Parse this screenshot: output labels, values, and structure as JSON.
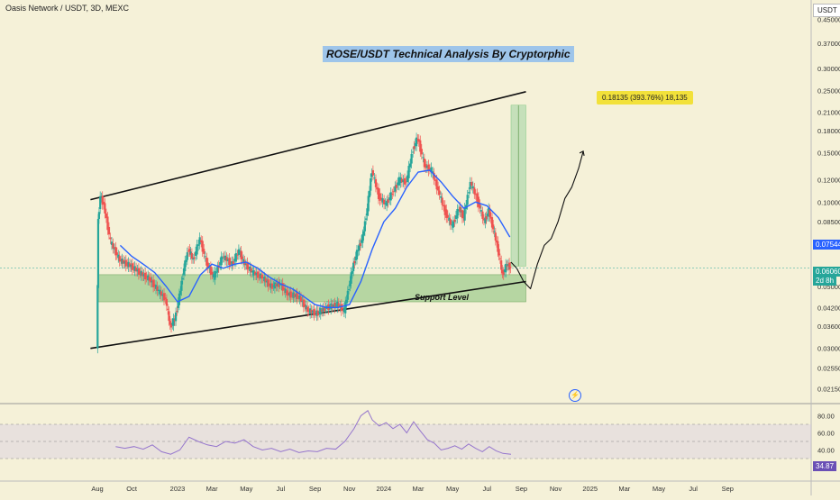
{
  "header": {
    "symbol_line": "Oasis Network / USDT, 3D, MEXC",
    "currency": "USDT"
  },
  "title": "ROSE/USDT Technical Analysis By Cryptorphic",
  "annotations": {
    "target_label": "0.18135 (393.76%) 18,135",
    "support_label": "Support Level",
    "price_tag_ma": "0.07544",
    "price_tag_last": "0.06060",
    "price_tag_countdown": "2d 8h",
    "rsi_tag": "34.87"
  },
  "colors": {
    "background": "#f5f1d8",
    "up_candle": "#26a69a",
    "down_candle": "#ef5350",
    "ma_line": "#2962ff",
    "support_zone": "#8cc57e",
    "target_zone": "#a5d6a7",
    "rsi_line": "#9575cd"
  },
  "chart_data": [
    {
      "type": "candlestick",
      "title": "ROSE/USDT Technical Analysis By Cryptorphic",
      "y_scale": "log",
      "ylim": [
        0.0205,
        0.49
      ],
      "y_ticks": [
        0.45,
        0.37,
        0.3,
        0.25,
        0.21,
        0.18,
        0.15,
        0.12,
        0.1,
        0.085,
        0.07,
        0.05,
        0.042,
        0.036,
        0.03,
        0.0255,
        0.0215
      ],
      "y_tick_labels": [
        "0.45000",
        "0.37000",
        "0.30000",
        "0.25000",
        "0.21000",
        "0.18000",
        "0.15000",
        "0.12000",
        "0.10000",
        "0.08500",
        "0.07000",
        "0.05000",
        "0.04200",
        "0.03600",
        "0.03000",
        "0.02550",
        "0.02150"
      ],
      "x_labels": [
        "Aug",
        "Oct",
        "2023",
        "Mar",
        "May",
        "Jul",
        "Sep",
        "Nov",
        "2024",
        "Mar",
        "May",
        "Jul",
        "Sep",
        "Nov",
        "2025",
        "Mar",
        "May",
        "Jul",
        "Sep"
      ],
      "x_label_pos": [
        0,
        1.5,
        3.5,
        5,
        6.5,
        8,
        9.5,
        11,
        12.5,
        14,
        15.5,
        17,
        18.5,
        20,
        21.5,
        23,
        24.5,
        26,
        27.5
      ],
      "xlim": [
        -0.3,
        28.3
      ],
      "series_points": [
        [
          0,
          0.03
        ],
        [
          0.05,
          0.085
        ],
        [
          0.15,
          0.105
        ],
        [
          0.3,
          0.098
        ],
        [
          0.6,
          0.072
        ],
        [
          1.0,
          0.062
        ],
        [
          1.5,
          0.059
        ],
        [
          2.0,
          0.055
        ],
        [
          2.3,
          0.053
        ],
        [
          2.7,
          0.048
        ],
        [
          3.0,
          0.045
        ],
        [
          3.2,
          0.036
        ],
        [
          3.4,
          0.038
        ],
        [
          3.6,
          0.046
        ],
        [
          3.8,
          0.058
        ],
        [
          4.0,
          0.068
        ],
        [
          4.2,
          0.062
        ],
        [
          4.5,
          0.074
        ],
        [
          4.8,
          0.06
        ],
        [
          5.1,
          0.054
        ],
        [
          5.5,
          0.064
        ],
        [
          5.9,
          0.06
        ],
        [
          6.2,
          0.067
        ],
        [
          6.4,
          0.061
        ],
        [
          6.8,
          0.056
        ],
        [
          7.2,
          0.054
        ],
        [
          7.6,
          0.05
        ],
        [
          8.0,
          0.051
        ],
        [
          8.3,
          0.047
        ],
        [
          8.8,
          0.046
        ],
        [
          9.2,
          0.041
        ],
        [
          9.6,
          0.04
        ],
        [
          10.0,
          0.042
        ],
        [
          10.5,
          0.043
        ],
        [
          10.8,
          0.041
        ],
        [
          11.0,
          0.05
        ],
        [
          11.2,
          0.06
        ],
        [
          11.4,
          0.068
        ],
        [
          11.6,
          0.075
        ],
        [
          11.8,
          0.095
        ],
        [
          12.0,
          0.13
        ],
        [
          12.3,
          0.105
        ],
        [
          12.6,
          0.098
        ],
        [
          12.9,
          0.108
        ],
        [
          13.2,
          0.12
        ],
        [
          13.5,
          0.118
        ],
        [
          13.8,
          0.155
        ],
        [
          14.0,
          0.17
        ],
        [
          14.3,
          0.135
        ],
        [
          14.6,
          0.13
        ],
        [
          14.9,
          0.11
        ],
        [
          15.2,
          0.092
        ],
        [
          15.5,
          0.082
        ],
        [
          15.8,
          0.095
        ],
        [
          16.0,
          0.088
        ],
        [
          16.3,
          0.118
        ],
        [
          16.6,
          0.102
        ],
        [
          16.9,
          0.085
        ],
        [
          17.1,
          0.093
        ],
        [
          17.3,
          0.08
        ],
        [
          17.5,
          0.068
        ],
        [
          17.7,
          0.055
        ],
        [
          17.9,
          0.06
        ],
        [
          18.05,
          0.058
        ]
      ],
      "moving_average_points": [
        [
          1.0,
          0.07
        ],
        [
          1.5,
          0.064
        ],
        [
          2.0,
          0.06
        ],
        [
          2.5,
          0.056
        ],
        [
          3.0,
          0.05
        ],
        [
          3.5,
          0.044
        ],
        [
          4.0,
          0.046
        ],
        [
          4.5,
          0.055
        ],
        [
          5.0,
          0.06
        ],
        [
          5.5,
          0.058
        ],
        [
          6.0,
          0.06
        ],
        [
          6.5,
          0.061
        ],
        [
          7.0,
          0.058
        ],
        [
          7.5,
          0.054
        ],
        [
          8.0,
          0.051
        ],
        [
          8.5,
          0.049
        ],
        [
          9.0,
          0.046
        ],
        [
          9.5,
          0.043
        ],
        [
          10.0,
          0.042
        ],
        [
          10.5,
          0.042
        ],
        [
          11.0,
          0.043
        ],
        [
          11.5,
          0.052
        ],
        [
          12.0,
          0.068
        ],
        [
          12.5,
          0.085
        ],
        [
          13.0,
          0.095
        ],
        [
          13.5,
          0.113
        ],
        [
          14.0,
          0.128
        ],
        [
          14.5,
          0.13
        ],
        [
          15.0,
          0.118
        ],
        [
          15.5,
          0.105
        ],
        [
          16.0,
          0.095
        ],
        [
          16.5,
          0.1
        ],
        [
          17.0,
          0.097
        ],
        [
          17.5,
          0.088
        ],
        [
          18.0,
          0.075
        ]
      ],
      "upper_channel": [
        [
          -0.3,
          0.102
        ],
        [
          18.7,
          0.248
        ]
      ],
      "lower_channel": [
        [
          -0.3,
          0.03
        ],
        [
          18.7,
          0.052
        ]
      ],
      "support_zone": [
        0.044,
        0.055
      ],
      "target_zone": {
        "x": [
          18.05,
          18.7
        ],
        "y": [
          0.059,
          0.222
        ]
      },
      "projection_path": [
        [
          18.05,
          0.061
        ],
        [
          18.3,
          0.058
        ],
        [
          18.6,
          0.052
        ],
        [
          18.9,
          0.049
        ],
        [
          19.2,
          0.06
        ],
        [
          19.5,
          0.07
        ],
        [
          19.8,
          0.074
        ],
        [
          20.1,
          0.085
        ],
        [
          20.4,
          0.103
        ],
        [
          20.7,
          0.113
        ],
        [
          21.0,
          0.132
        ],
        [
          21.2,
          0.152
        ]
      ]
    },
    {
      "type": "line",
      "title": "RSI",
      "ylim": [
        10,
        90
      ],
      "y_ticks": [
        80,
        60,
        40
      ],
      "y_tick_labels": [
        "80.00",
        "60.00",
        "40.00"
      ],
      "band": [
        30,
        70
      ],
      "series_points": [
        [
          0.8,
          44
        ],
        [
          1.2,
          42
        ],
        [
          1.6,
          44
        ],
        [
          2.0,
          41
        ],
        [
          2.4,
          46
        ],
        [
          2.8,
          38
        ],
        [
          3.2,
          35
        ],
        [
          3.6,
          40
        ],
        [
          4.0,
          55
        ],
        [
          4.4,
          50
        ],
        [
          4.8,
          46
        ],
        [
          5.2,
          44
        ],
        [
          5.6,
          50
        ],
        [
          6.0,
          48
        ],
        [
          6.4,
          52
        ],
        [
          6.8,
          44
        ],
        [
          7.2,
          40
        ],
        [
          7.6,
          42
        ],
        [
          8.0,
          38
        ],
        [
          8.4,
          41
        ],
        [
          8.8,
          37
        ],
        [
          9.2,
          39
        ],
        [
          9.6,
          38
        ],
        [
          10.0,
          42
        ],
        [
          10.4,
          41
        ],
        [
          10.8,
          50
        ],
        [
          11.2,
          65
        ],
        [
          11.5,
          80
        ],
        [
          11.8,
          86
        ],
        [
          12.0,
          75
        ],
        [
          12.3,
          68
        ],
        [
          12.6,
          72
        ],
        [
          12.9,
          65
        ],
        [
          13.2,
          70
        ],
        [
          13.5,
          60
        ],
        [
          13.8,
          73
        ],
        [
          14.1,
          62
        ],
        [
          14.4,
          52
        ],
        [
          14.7,
          48
        ],
        [
          15.0,
          40
        ],
        [
          15.3,
          42
        ],
        [
          15.6,
          45
        ],
        [
          15.9,
          41
        ],
        [
          16.2,
          47
        ],
        [
          16.5,
          42
        ],
        [
          16.8,
          38
        ],
        [
          17.1,
          44
        ],
        [
          17.4,
          39
        ],
        [
          17.7,
          36
        ],
        [
          18.05,
          35
        ]
      ]
    }
  ]
}
